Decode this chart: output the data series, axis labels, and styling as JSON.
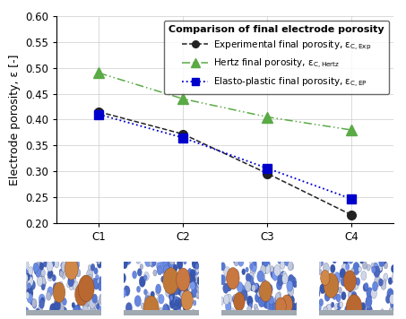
{
  "x_labels": [
    "C1",
    "C2",
    "C3",
    "C4"
  ],
  "x_positions": [
    1,
    2,
    3,
    4
  ],
  "exp_data": [
    0.415,
    0.372,
    0.296,
    0.216
  ],
  "hertz_data": [
    0.49,
    0.44,
    0.405,
    0.38
  ],
  "ep_data": [
    0.41,
    0.365,
    0.306,
    0.247
  ],
  "ylim": [
    0.2,
    0.6
  ],
  "yticks": [
    0.2,
    0.25,
    0.3,
    0.35,
    0.4,
    0.45,
    0.5,
    0.55,
    0.6
  ],
  "ylabel": "Electrode porosity, ε [-]",
  "legend_title": "Comparison of final electrode porosity",
  "legend_entry_exp": "Experimental final porosity, ε$_\\mathregular{C, Exp}$",
  "legend_entry_hertz": "Hertz final porosity, ε$_\\mathregular{C, Hertz}$",
  "legend_entry_ep": "Elasto-plastic final porosity, ε$_\\mathregular{C, EP}$",
  "exp_color": "#222222",
  "hertz_color": "#5aaa46",
  "ep_color": "#0000cc",
  "bg_color": "#ffffff",
  "grid_color": "#cccccc",
  "label_fontsize": 9,
  "tick_fontsize": 8.5,
  "legend_fontsize": 7.5,
  "legend_title_fontsize": 8
}
